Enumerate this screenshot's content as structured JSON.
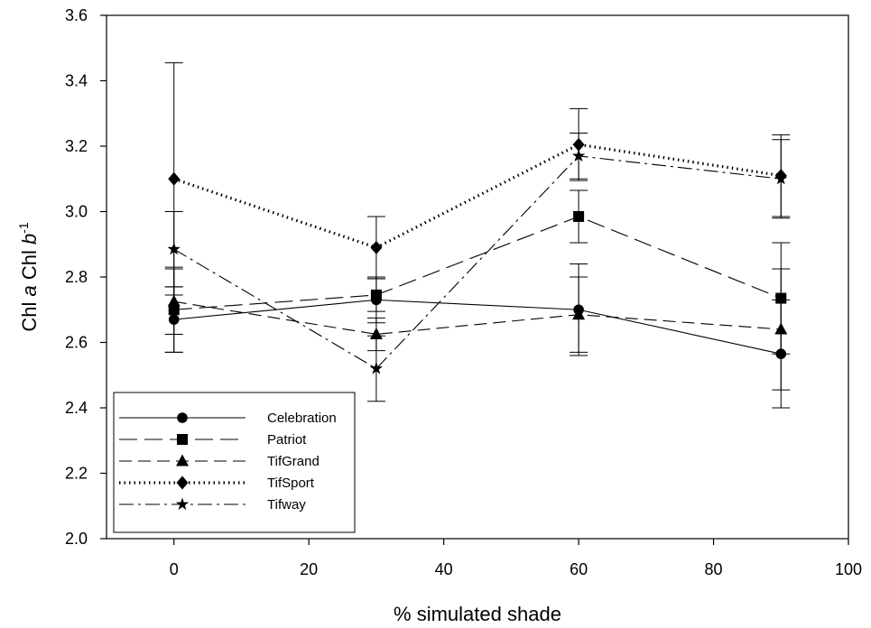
{
  "chart_data": {
    "type": "line",
    "xlabel": "% simulated shade",
    "ylabel": {
      "parts": [
        "Chl ",
        "a",
        " Chl ",
        "b",
        "-1"
      ]
    },
    "xlim": [
      -10,
      100
    ],
    "ylim": [
      2.0,
      3.6
    ],
    "xticks": [
      "0",
      "20",
      "40",
      "60",
      "80",
      "100"
    ],
    "yticks": [
      "2.0",
      "2.2",
      "2.4",
      "2.6",
      "2.8",
      "3.0",
      "3.2",
      "3.4",
      "3.6"
    ],
    "x": [
      0,
      30,
      60,
      90
    ],
    "grid": false,
    "legend_position": "bottom-left",
    "series": [
      {
        "name": "Celebration",
        "marker": "circle",
        "line": "solid",
        "values": [
          2.67,
          2.73,
          2.7,
          2.565
        ],
        "errors": [
          0.1,
          0.07,
          0.14,
          0.165
        ]
      },
      {
        "name": "Patriot",
        "marker": "square",
        "line": "long-dash",
        "values": [
          2.7,
          2.745,
          2.985,
          2.735
        ],
        "errors": [
          0.13,
          0.05,
          0.08,
          0.17
        ]
      },
      {
        "name": "TifGrand",
        "marker": "triangle",
        "line": "dash",
        "values": [
          2.725,
          2.625,
          2.685,
          2.64
        ],
        "errors": [
          0.1,
          0.05,
          0.115,
          0.185
        ]
      },
      {
        "name": "TifSport",
        "marker": "diamond",
        "line": "dotted",
        "values": [
          3.1,
          2.89,
          3.205,
          3.11
        ],
        "errors": [
          0.355,
          0.095,
          0.11,
          0.125
        ]
      },
      {
        "name": "Tifway",
        "marker": "star",
        "line": "dash-dot",
        "values": [
          2.885,
          2.52,
          3.17,
          3.1
        ],
        "errors": [
          0.115,
          0.1,
          0.07,
          0.12
        ]
      }
    ]
  }
}
